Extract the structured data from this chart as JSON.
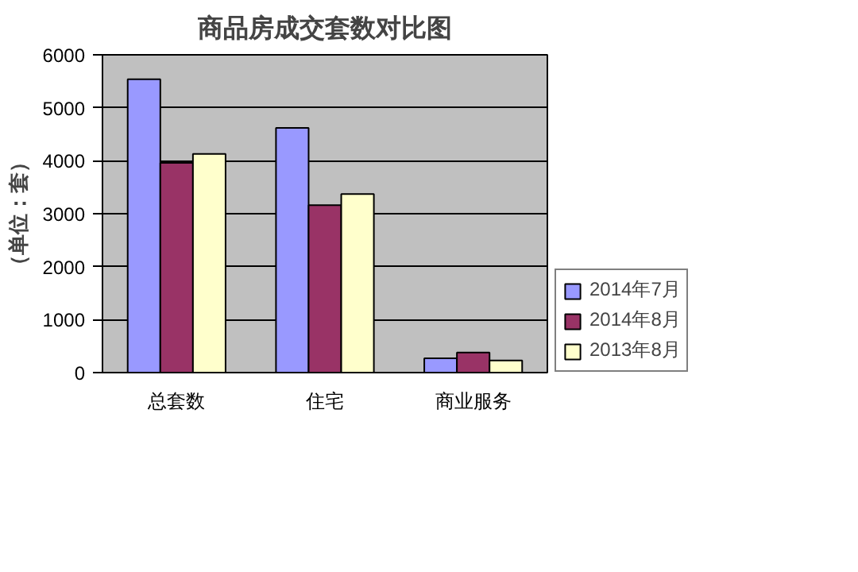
{
  "chart_data": {
    "type": "bar",
    "title": "商品房成交套数对比图",
    "ylabel": "（单位：套）",
    "categories": [
      "总套数",
      "住宅",
      "商业服务"
    ],
    "series": [
      {
        "name": "2014年7月",
        "color": "#9999ff",
        "values": [
          5540,
          4620,
          270
        ]
      },
      {
        "name": "2014年8月",
        "color": "#993366",
        "values": [
          3960,
          3160,
          380
        ]
      },
      {
        "name": "2013年8月",
        "color": "#ffffcc",
        "values": [
          4130,
          3370,
          230
        ]
      }
    ],
    "ylim": [
      0,
      6000
    ],
    "yticks": [
      0,
      1000,
      2000,
      3000,
      4000,
      5000,
      6000
    ],
    "grid": "y",
    "legend": "right"
  }
}
